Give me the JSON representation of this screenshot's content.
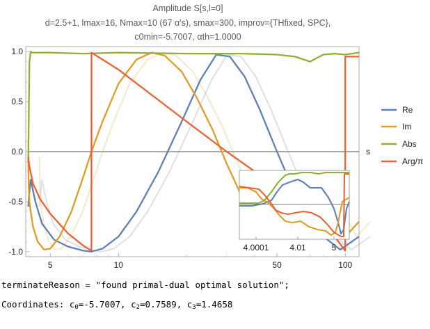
{
  "title": {
    "line1": "Amplitude S[s,l=0]",
    "line2": "d=2.5+1, lmax=16, Nmax=10 (67 α's), smax=300, improv={THfixed, SPC},",
    "line3": "c0min=-5.7007, αth=1.0000"
  },
  "chart_data": {
    "type": "line",
    "xscale": "log",
    "xlim": [
      3.9,
      115
    ],
    "ylim": [
      -1.05,
      1.05
    ],
    "xlabel": "s",
    "xticks": [
      "5",
      "10",
      "50",
      "100"
    ],
    "yticks": [
      "1.0",
      "0.5",
      "0.0",
      "-0.5",
      "-1.0"
    ],
    "legend_position": "right",
    "series": [
      {
        "name": "Re",
        "color": "#5e81b5",
        "x": [
          4.0,
          4.03,
          4.1,
          4.3,
          4.6,
          5.2,
          6.0,
          7.0,
          7.6,
          8.5,
          10,
          12,
          15,
          19,
          23,
          27,
          31,
          36,
          42,
          50,
          60,
          75,
          95,
          115
        ],
        "y": [
          -0.55,
          -0.45,
          -0.28,
          -0.5,
          -0.72,
          -0.88,
          -0.95,
          -0.99,
          -1.0,
          -0.97,
          -0.85,
          -0.6,
          -0.2,
          0.3,
          0.72,
          0.97,
          0.95,
          0.75,
          0.42,
          0.0,
          -0.42,
          -0.8,
          -0.98,
          -0.85
        ]
      },
      {
        "name": "Im",
        "color": "#e19c24",
        "x": [
          4.0,
          4.01,
          4.02,
          4.05,
          4.1,
          4.2,
          4.4,
          4.7,
          5.0,
          5.5,
          6.2,
          7.0,
          7.6,
          8.5,
          10,
          12,
          14,
          16,
          19,
          22,
          26,
          30,
          35,
          42,
          50,
          60,
          72,
          85,
          100,
          115
        ],
        "y": [
          -0.05,
          -0.2,
          -0.35,
          -0.5,
          -0.6,
          -0.75,
          -0.9,
          -0.98,
          -0.97,
          -0.85,
          -0.6,
          -0.25,
          0.0,
          0.3,
          0.68,
          0.92,
          0.99,
          0.96,
          0.8,
          0.55,
          0.22,
          -0.12,
          -0.45,
          -0.72,
          -0.8,
          -0.65,
          -0.3,
          -0.55,
          -0.85,
          -0.7
        ]
      },
      {
        "name": "Abs",
        "color": "#8fb032",
        "x": [
          4.0,
          4.05,
          4.1,
          4.15,
          5,
          7,
          10,
          20,
          35,
          50,
          60,
          70,
          80,
          90,
          100,
          115
        ],
        "y": [
          -0.1,
          0.9,
          1.0,
          0.99,
          0.99,
          0.98,
          0.99,
          0.98,
          0.98,
          0.97,
          0.95,
          0.9,
          0.97,
          0.98,
          0.97,
          0.99
        ]
      },
      {
        "name": "Arg/π",
        "color": "#eb6235",
        "x": [
          4.0,
          4.05,
          4.2,
          4.5,
          5.0,
          6.0,
          7.0,
          7.6,
          7.601,
          10,
          20,
          30,
          40,
          50,
          60,
          80,
          100,
          100.01,
          115
        ],
        "y": [
          -0.05,
          -0.15,
          -0.32,
          -0.47,
          -0.62,
          -0.82,
          -0.94,
          -0.99,
          0.99,
          0.82,
          0.3,
          0.0,
          -0.2,
          -0.33,
          -0.45,
          -0.7,
          -0.99,
          0.95,
          0.95
        ]
      }
    ],
    "inset": {
      "xticks": [
        "4.0001",
        "4.01",
        "5"
      ]
    }
  },
  "output": {
    "line1": "terminateReason = \"found primal-dual optimal solution\";",
    "line2_label": "Coordinates: ",
    "c0_label": "c",
    "c0_sub": "0",
    "c0_val": "=-5.7007, ",
    "c2_label": "c",
    "c2_sub": "2",
    "c2_val": "=0.7589, ",
    "c3_label": "c",
    "c3_sub": "3",
    "c3_val": "=1.4658"
  }
}
